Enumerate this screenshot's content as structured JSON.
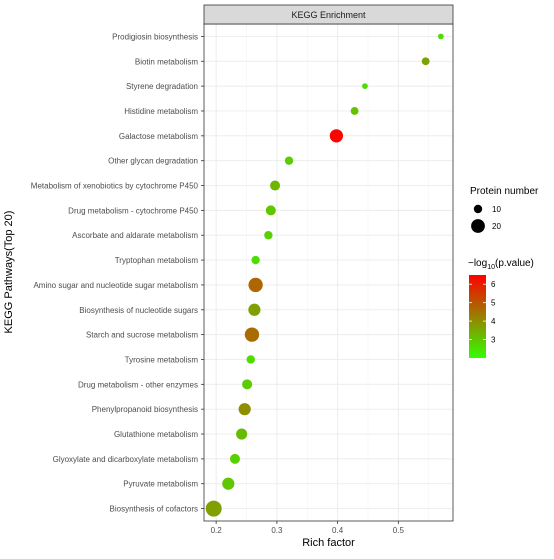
{
  "chart_data": {
    "type": "scatter",
    "title": "",
    "facet_label": "KEGG Enrichment",
    "xlabel": "Rich factor",
    "ylabel": "KEGG Pathways(Top 20)",
    "xlim": [
      0.18,
      0.59
    ],
    "x_ticks": [
      0.2,
      0.3,
      0.4,
      0.5
    ],
    "x_tick_labels": [
      "0.2",
      "0.3",
      "0.4",
      "0.5"
    ],
    "grid": true,
    "legend_size": {
      "title": "Protein number",
      "entries": [
        {
          "label": "10",
          "value": 10
        },
        {
          "label": "20",
          "value": 20
        }
      ]
    },
    "legend_color": {
      "title_prefix": "−log",
      "title_sub": "10",
      "title_suffix": "(p.value)",
      "min": 2.0,
      "max": 6.5,
      "ticks": [
        {
          "label": "6",
          "value": 6
        },
        {
          "label": "5",
          "value": 5
        },
        {
          "label": "4",
          "value": 4
        },
        {
          "label": "3",
          "value": 3
        }
      ],
      "low_color": "#33ff00",
      "high_color": "#ff0000"
    },
    "points": [
      {
        "pathway": "Prodigiosin biosynthesis",
        "x": 0.57,
        "size": 5,
        "logp": 2.6
      },
      {
        "pathway": "Biotin metabolism",
        "x": 0.545,
        "size": 9,
        "logp": 3.6
      },
      {
        "pathway": "Styrene degradation",
        "x": 0.445,
        "size": 5,
        "logp": 2.6
      },
      {
        "pathway": "Histidine metabolism",
        "x": 0.428,
        "size": 9,
        "logp": 3.1
      },
      {
        "pathway": "Galactose metabolism",
        "x": 0.398,
        "size": 19,
        "logp": 6.4
      },
      {
        "pathway": "Other glycan degradation",
        "x": 0.32,
        "size": 10,
        "logp": 2.9
      },
      {
        "pathway": "Metabolism of xenobiotics by cytochrome P450",
        "x": 0.297,
        "size": 13,
        "logp": 3.3
      },
      {
        "pathway": "Drug metabolism - cytochrome P450",
        "x": 0.29,
        "size": 13,
        "logp": 3.0
      },
      {
        "pathway": "Ascorbate and aldarate metabolism",
        "x": 0.286,
        "size": 10,
        "logp": 2.8
      },
      {
        "pathway": "Tryptophan metabolism",
        "x": 0.265,
        "size": 10,
        "logp": 2.6
      },
      {
        "pathway": "Amino sugar and nucleotide sugar metabolism",
        "x": 0.265,
        "size": 21,
        "logp": 4.7
      },
      {
        "pathway": "Biosynthesis of nucleotide sugars",
        "x": 0.263,
        "size": 17,
        "logp": 3.7
      },
      {
        "pathway": "Starch and sucrose metabolism",
        "x": 0.259,
        "size": 21,
        "logp": 4.6
      },
      {
        "pathway": "Tyrosine metabolism",
        "x": 0.257,
        "size": 10,
        "logp": 2.6
      },
      {
        "pathway": "Drug metabolism - other enzymes",
        "x": 0.251,
        "size": 13,
        "logp": 2.9
      },
      {
        "pathway": "Phenylpropanoid biosynthesis",
        "x": 0.247,
        "size": 17,
        "logp": 4.0
      },
      {
        "pathway": "Glutathione metabolism",
        "x": 0.242,
        "size": 15,
        "logp": 3.2
      },
      {
        "pathway": "Glyoxylate and dicarboxylate metabolism",
        "x": 0.231,
        "size": 13,
        "logp": 2.8
      },
      {
        "pathway": "Pyruvate metabolism",
        "x": 0.22,
        "size": 17,
        "logp": 3.0
      },
      {
        "pathway": "Biosynthesis of cofactors",
        "x": 0.196,
        "size": 24,
        "logp": 3.7
      }
    ]
  }
}
